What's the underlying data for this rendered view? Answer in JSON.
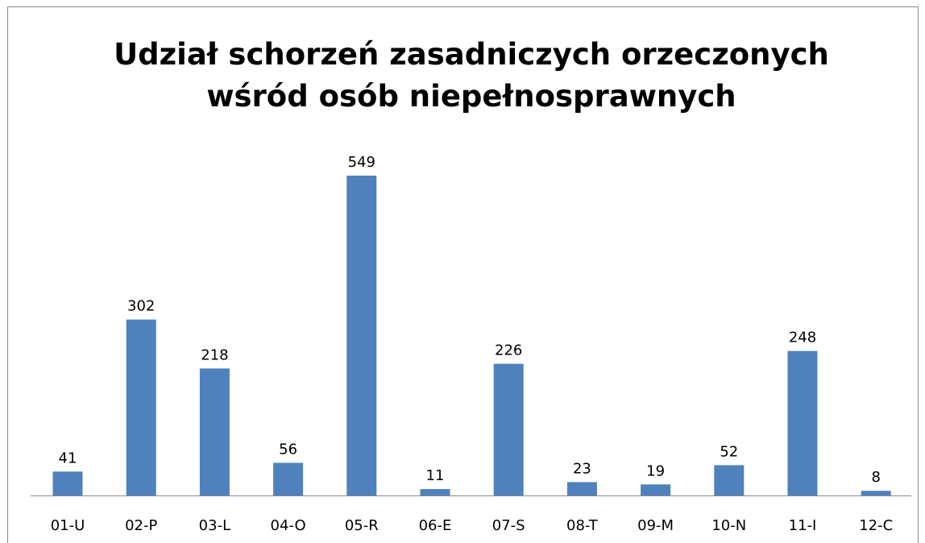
{
  "chart_data": {
    "type": "bar",
    "title": "Udział schorzeń zasadniczych orzeczonych wśród osób niepełnosprawnych",
    "categories": [
      "01-U",
      "02-P",
      "03-L",
      "04-O",
      "05-R",
      "06-E",
      "07-S",
      "08-T",
      "09-M",
      "10-N",
      "11-I",
      "12-C"
    ],
    "values": [
      41,
      302,
      218,
      56,
      549,
      11,
      226,
      23,
      19,
      52,
      248,
      8
    ],
    "color": "#4f81bd"
  }
}
